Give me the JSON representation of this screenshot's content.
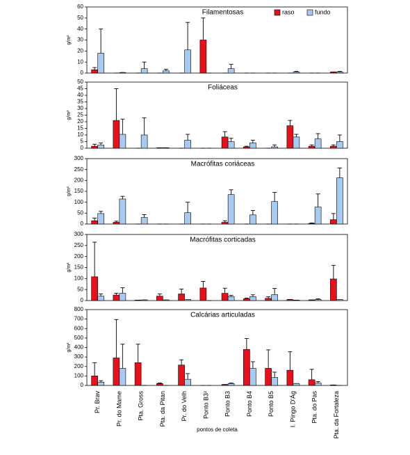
{
  "chart_data": [
    {
      "type": "bar",
      "title": "Filamentosas",
      "ylabel": "g/m²",
      "ylim": [
        0,
        60
      ],
      "yticks": [
        0,
        10,
        20,
        30,
        40,
        50,
        60
      ],
      "series": [
        {
          "name": "raso",
          "color": "#e8101a",
          "values": [
            3,
            0,
            0,
            0,
            0,
            30,
            0,
            0,
            0,
            0,
            0,
            1
          ],
          "errors": [
            2,
            0,
            0,
            0,
            0,
            20,
            0,
            0,
            0,
            0,
            0,
            0
          ]
        },
        {
          "name": "fundo",
          "color": "#a6caf0",
          "values": [
            18,
            0.5,
            4,
            2,
            21,
            0,
            4,
            0,
            0,
            1,
            0,
            1
          ],
          "errors": [
            22,
            0,
            6,
            1.5,
            25,
            0,
            4,
            0,
            0,
            0.5,
            0,
            0.5
          ]
        }
      ]
    },
    {
      "type": "bar",
      "title": "Foliáceas",
      "ylabel": "g/m²",
      "ylim": [
        0,
        50
      ],
      "yticks": [
        0,
        5,
        10,
        15,
        20,
        25,
        30,
        35,
        40,
        45,
        50
      ],
      "series": [
        {
          "color": "#e8101a",
          "values": [
            1.5,
            21,
            0,
            0.3,
            0,
            0,
            8.5,
            1,
            0,
            17,
            1.5,
            1.5
          ],
          "errors": [
            1.5,
            24,
            0,
            0,
            0,
            0,
            4,
            0.5,
            0,
            4,
            1,
            1
          ]
        },
        {
          "color": "#a6caf0",
          "values": [
            2.5,
            10.5,
            10,
            0.3,
            6,
            0,
            5,
            4,
            1,
            8.5,
            7,
            5
          ],
          "errors": [
            1.5,
            11.5,
            13,
            0,
            4.5,
            0,
            2.5,
            2,
            1.5,
            2,
            4,
            5
          ]
        }
      ]
    },
    {
      "type": "bar",
      "title": "Macrófitas coriáceas",
      "ylabel": "g/m²",
      "ylim": [
        0,
        300
      ],
      "yticks": [
        0,
        50,
        100,
        150,
        200,
        250,
        300
      ],
      "series": [
        {
          "color": "#e8101a",
          "values": [
            15,
            8,
            0,
            0,
            0,
            0,
            8,
            0,
            0,
            0,
            3,
            20
          ],
          "errors": [
            12,
            5,
            0,
            0,
            0,
            0,
            7,
            0,
            0,
            0,
            2,
            28
          ]
        },
        {
          "color": "#a6caf0",
          "values": [
            48,
            115,
            30,
            0,
            52,
            0,
            135,
            42,
            103,
            0,
            78,
            212
          ],
          "errors": [
            10,
            12,
            13,
            0,
            48,
            0,
            22,
            20,
            42,
            0,
            60,
            45
          ]
        }
      ]
    },
    {
      "type": "bar",
      "title": "Macrófitas corticadas",
      "ylabel": "g/m²",
      "ylim": [
        0,
        300
      ],
      "yticks": [
        0,
        50,
        100,
        150,
        200,
        250,
        300
      ],
      "series": [
        {
          "color": "#e8101a",
          "values": [
            108,
            25,
            2,
            20,
            30,
            57,
            33,
            8,
            10,
            5,
            3,
            98
          ],
          "errors": [
            157,
            8,
            0,
            10,
            22,
            30,
            23,
            3,
            7,
            0,
            0,
            62
          ]
        },
        {
          "color": "#a6caf0",
          "values": [
            20,
            33,
            3,
            3,
            5,
            0,
            18,
            18,
            27,
            2,
            5,
            5
          ],
          "errors": [
            10,
            25,
            0,
            0,
            0,
            0,
            6,
            8,
            28,
            0,
            3,
            0
          ]
        }
      ]
    },
    {
      "type": "bar",
      "title": "Calcárias articuladas",
      "ylabel": "g/m²",
      "xlabel": "pontos de coleta",
      "ylim": [
        0,
        800
      ],
      "yticks": [
        0,
        100,
        200,
        300,
        400,
        500,
        600,
        700,
        800
      ],
      "categories": [
        "Pr. Brav",
        "Pr. do Mame",
        "Pta. Gross",
        "Pta. da Pitan",
        "Pr. do Velh",
        "Ponto B3²",
        "Ponto B3",
        "Ponto B4",
        "Ponto B5",
        "I. Pingo D'Ág",
        "Pta. do Pas",
        "Pta. da Fortaleza"
      ],
      "series": [
        {
          "color": "#e8101a",
          "values": [
            100,
            290,
            240,
            20,
            215,
            0,
            10,
            380,
            180,
            160,
            60,
            5
          ],
          "errors": [
            140,
            405,
            195,
            5,
            55,
            0,
            0,
            115,
            195,
            195,
            110,
            0
          ]
        },
        {
          "color": "#a6caf0",
          "values": [
            35,
            180,
            0,
            0,
            65,
            0,
            20,
            180,
            85,
            20,
            25,
            0
          ],
          "errors": [
            15,
            255,
            0,
            0,
            60,
            0,
            5,
            70,
            55,
            0,
            15,
            0
          ]
        }
      ]
    }
  ]
}
